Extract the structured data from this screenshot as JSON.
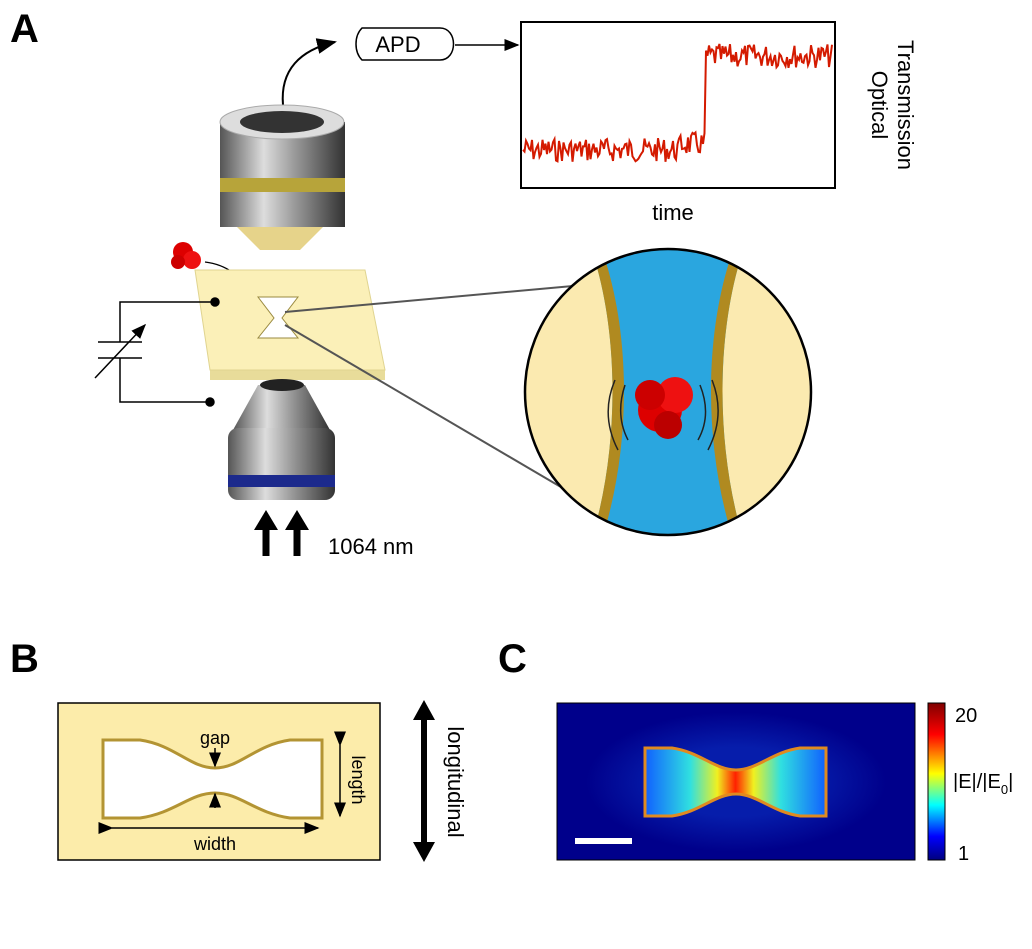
{
  "panels": {
    "a": {
      "label": "A",
      "detector": "APD",
      "y_label": [
        "Optical",
        "Transmission"
      ],
      "x_label": "time",
      "laser": "1064 nm"
    },
    "b": {
      "label": "B",
      "gap": "gap",
      "length": "length",
      "width": "width",
      "axis": "longitudinal"
    },
    "c": {
      "label": "C",
      "colorbar_max": 20,
      "colorbar_min": 1,
      "colorbar_label": [
        "|E|/|E",
        "0",
        "|"
      ]
    }
  }
}
